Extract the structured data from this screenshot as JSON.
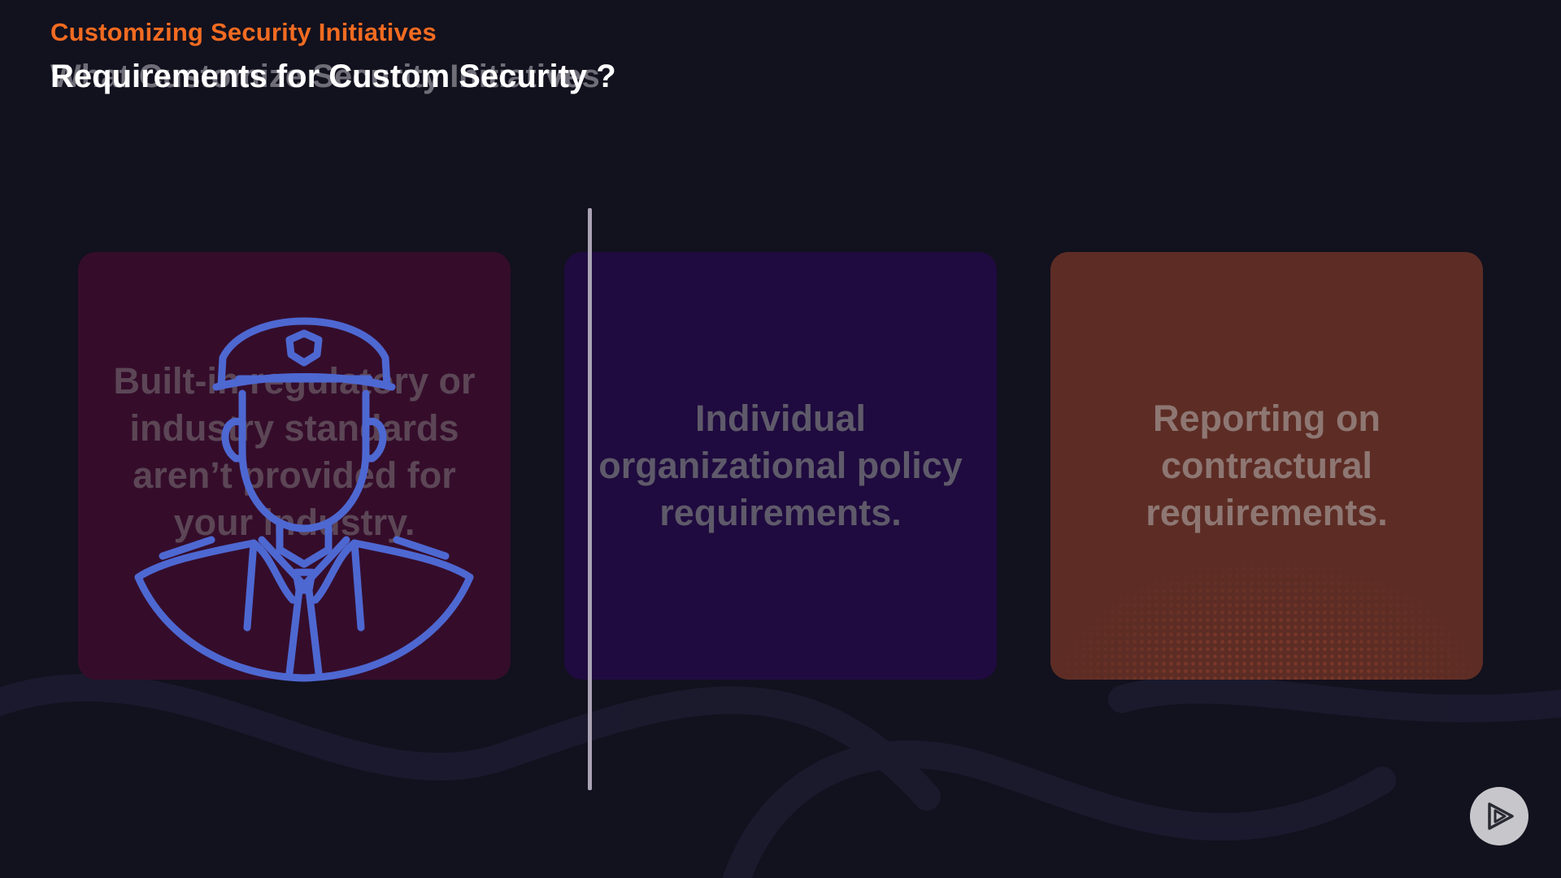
{
  "header": {
    "eyebrow": "Customizing Security Initiatives",
    "title_ghost": "What Customize Security Initiatives",
    "title": "Requirements for Custom Security ?"
  },
  "cards": [
    {
      "text": "Built-in regulatory or industry standards aren’t provided for your industry.",
      "icon": "security-guard-icon"
    },
    {
      "text": "Individual organizational policy requirements."
    },
    {
      "text": "Reporting on contractural requirements."
    }
  ],
  "controls": {
    "play_icon": "play-logo-icon"
  },
  "colors": {
    "background": "#12111e",
    "accent": "#f26b21",
    "card_1": "#350d2b",
    "card_2": "#1f0b3f",
    "card_3": "#5d2d25",
    "icon_stroke": "#4e68d2"
  }
}
